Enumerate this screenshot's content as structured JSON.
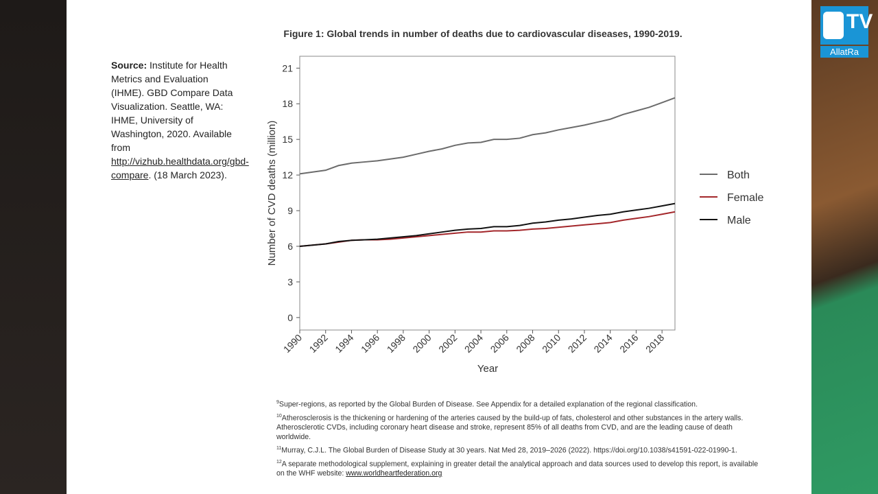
{
  "logo": {
    "badge": "TV",
    "name": "AllatRa"
  },
  "source": {
    "label": "Source:",
    "text": "Institute for Health Metrics and Evaluation (IHME). GBD Compare Data Visualization. Seattle, WA: IHME, University of Washington, 2020. Available from",
    "link": "http://vizhub.healthdata.org/gbd-compare",
    "tail": ". (18 March 2023)."
  },
  "chart_data": {
    "type": "line",
    "title": "Figure 1: Global trends in number of deaths due to cardiovascular diseases, 1990-2019.",
    "x_label": "Year",
    "y_label": "Number of CVD deaths (million)",
    "x": [
      1990,
      1991,
      1992,
      1993,
      1994,
      1995,
      1996,
      1997,
      1998,
      1999,
      2000,
      2001,
      2002,
      2003,
      2004,
      2005,
      2006,
      2007,
      2008,
      2009,
      2010,
      2011,
      2012,
      2013,
      2014,
      2015,
      2016,
      2017,
      2018,
      2019
    ],
    "series": [
      {
        "name": "Both",
        "color": "#6b6b6b",
        "values": [
          12.1,
          12.25,
          12.4,
          12.8,
          13.0,
          13.1,
          13.2,
          13.35,
          13.5,
          13.75,
          14.0,
          14.2,
          14.5,
          14.7,
          14.75,
          15.0,
          15.0,
          15.1,
          15.4,
          15.55,
          15.8,
          16.0,
          16.2,
          16.45,
          16.7,
          17.1,
          17.4,
          17.7,
          18.1,
          18.5
        ]
      },
      {
        "name": "Female",
        "color": "#a3262a",
        "values": [
          6.0,
          6.1,
          6.2,
          6.35,
          6.5,
          6.55,
          6.55,
          6.6,
          6.7,
          6.8,
          6.9,
          7.0,
          7.1,
          7.2,
          7.2,
          7.3,
          7.3,
          7.35,
          7.45,
          7.5,
          7.6,
          7.7,
          7.8,
          7.9,
          8.0,
          8.2,
          8.35,
          8.5,
          8.7,
          8.9
        ]
      },
      {
        "name": "Male",
        "color": "#111111",
        "values": [
          6.0,
          6.1,
          6.2,
          6.4,
          6.5,
          6.55,
          6.6,
          6.7,
          6.8,
          6.9,
          7.05,
          7.2,
          7.35,
          7.45,
          7.5,
          7.65,
          7.65,
          7.75,
          7.95,
          8.05,
          8.2,
          8.3,
          8.45,
          8.6,
          8.7,
          8.9,
          9.05,
          9.2,
          9.4,
          9.6
        ]
      }
    ],
    "xlim": [
      1990,
      2019
    ],
    "xticks": [
      1990,
      1992,
      1994,
      1996,
      1998,
      2000,
      2002,
      2004,
      2006,
      2008,
      2010,
      2012,
      2014,
      2016,
      2018
    ],
    "ylim": [
      -1.05,
      22.0
    ],
    "yticks": [
      0,
      3,
      6,
      9,
      12,
      15,
      18,
      21
    ],
    "grid": false,
    "legend": "right"
  },
  "footnotes": [
    {
      "mark": "9",
      "text": "Super-regions, as reported by the Global Burden of Disease. See Appendix for a detailed explanation of the regional classification."
    },
    {
      "mark": "10",
      "text": "Atherosclerosis is the thickening or hardening of the arteries caused by the build-up of fats, cholesterol and other substances in the artery walls. Atherosclerotic CVDs, including coronary heart disease and stroke, represent 85% of all deaths from CVD, and are the leading cause of death worldwide."
    },
    {
      "mark": "11",
      "text": "Murray, C.J.L. The Global Burden of Disease Study at 30 years. Nat Med 28, 2019–2026 (2022). https://doi.org/10.1038/s41591-022-01990-1."
    },
    {
      "mark": "12",
      "text": "A separate methodological supplement, explaining in greater detail the analytical approach and data sources used to develop this report, is available on the WHF website:",
      "link": "www.worldheartfederation.org"
    }
  ]
}
